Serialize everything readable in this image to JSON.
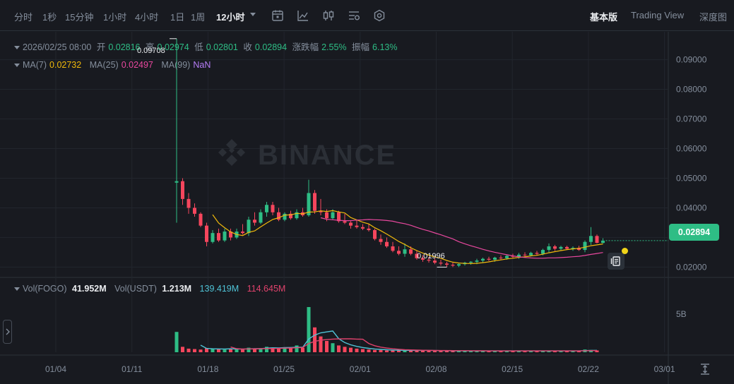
{
  "toolbar": {
    "timeframes": [
      "分时",
      "1秒",
      "15分钟",
      "1小时",
      "4小时",
      "1日",
      "1周",
      "12小时"
    ],
    "active_timeframe": "12小时",
    "icons": [
      "indicator-settings-icon",
      "line-chart-icon",
      "candle-type-icon",
      "depth-settings-icon",
      "settings-gear-icon"
    ],
    "views": [
      "基本版",
      "Trading View",
      "深度图"
    ],
    "active_view": "基本版"
  },
  "ohlc": {
    "date": "2026/02/25 08:00",
    "open_label": "开",
    "open": "0.02816",
    "high_label": "高",
    "high": "0.02974",
    "low_label": "低",
    "low": "0.02801",
    "close_label": "收",
    "close": "0.02894",
    "change_label": "涨跌幅",
    "change": "2.55%",
    "amplitude_label": "振幅",
    "amplitude": "6.13%"
  },
  "ma": {
    "ma7_label": "MA(7)",
    "ma7": "0.02732",
    "ma25_label": "MA(25)",
    "ma25": "0.02497",
    "ma99_label": "MA(99)",
    "ma99": "NaN"
  },
  "volume": {
    "vol_fogo_label": "Vol(FOGO)",
    "vol_fogo": "41.952M",
    "vol_usdt_label": "Vol(USDT)",
    "vol_usdt": "1.213M",
    "ma_a": "139.419M",
    "ma_b": "114.645M",
    "axis_tick": "5B"
  },
  "price_axis": [
    "0.09000",
    "0.08000",
    "0.07000",
    "0.06000",
    "0.05000",
    "0.04000",
    "0.03000",
    "0.02000"
  ],
  "current_price": "0.02894",
  "high_marker": "0.09708",
  "low_marker": "0.01996",
  "date_axis": [
    "01/04",
    "01/11",
    "01/18",
    "01/25",
    "02/01",
    "02/08",
    "02/15",
    "02/22",
    "03/01"
  ],
  "watermark": "BINANCE",
  "colors": {
    "up": "#2ebd85",
    "down": "#f6465d",
    "ma7": "#f0b90b",
    "ma25": "#e8489e",
    "vol_ma_a": "#4fc3d6",
    "vol_ma_b": "#e0426c",
    "background": "#181a20"
  },
  "chart_data": {
    "type": "candlestick",
    "interval": "12h",
    "series": [
      {
        "name": "price",
        "ohlc": [
          [
            0.0485,
            0.0971,
            0.035,
            0.049
          ],
          [
            0.049,
            0.05,
            0.041,
            0.043
          ],
          [
            0.043,
            0.045,
            0.038,
            0.04
          ],
          [
            0.04,
            0.0415,
            0.037,
            0.038
          ],
          [
            0.038,
            0.0385,
            0.0335,
            0.034
          ],
          [
            0.034,
            0.035,
            0.027,
            0.0285
          ],
          [
            0.0285,
            0.0325,
            0.028,
            0.0315
          ],
          [
            0.0315,
            0.033,
            0.0285,
            0.029
          ],
          [
            0.029,
            0.033,
            0.0285,
            0.032
          ],
          [
            0.032,
            0.033,
            0.029,
            0.03
          ],
          [
            0.03,
            0.033,
            0.0295,
            0.032
          ],
          [
            0.032,
            0.0345,
            0.031,
            0.0315
          ],
          [
            0.0315,
            0.037,
            0.0305,
            0.036
          ],
          [
            0.036,
            0.0385,
            0.034,
            0.035
          ],
          [
            0.035,
            0.0395,
            0.0345,
            0.0385
          ],
          [
            0.0385,
            0.042,
            0.037,
            0.041
          ],
          [
            0.041,
            0.042,
            0.0375,
            0.0385
          ],
          [
            0.0385,
            0.04,
            0.0355,
            0.036
          ],
          [
            0.036,
            0.0385,
            0.0355,
            0.038
          ],
          [
            0.038,
            0.039,
            0.036,
            0.0365
          ],
          [
            0.0365,
            0.0395,
            0.036,
            0.0385
          ],
          [
            0.0385,
            0.04,
            0.037,
            0.0375
          ],
          [
            0.0375,
            0.0495,
            0.037,
            0.045
          ],
          [
            0.045,
            0.046,
            0.038,
            0.039
          ],
          [
            0.039,
            0.043,
            0.0375,
            0.0385
          ],
          [
            0.0385,
            0.0395,
            0.0355,
            0.0365
          ],
          [
            0.0365,
            0.0395,
            0.036,
            0.0385
          ],
          [
            0.0385,
            0.039,
            0.035,
            0.0355
          ],
          [
            0.0355,
            0.038,
            0.0345,
            0.035
          ],
          [
            0.035,
            0.0355,
            0.033,
            0.034
          ],
          [
            0.034,
            0.036,
            0.033,
            0.0335
          ],
          [
            0.0335,
            0.0345,
            0.0325,
            0.033
          ],
          [
            0.033,
            0.0345,
            0.032,
            0.0325
          ],
          [
            0.0325,
            0.033,
            0.029,
            0.0295
          ],
          [
            0.0295,
            0.031,
            0.0275,
            0.0285
          ],
          [
            0.0285,
            0.03,
            0.0265,
            0.027
          ],
          [
            0.027,
            0.0285,
            0.025,
            0.0255
          ],
          [
            0.0255,
            0.027,
            0.024,
            0.0245
          ],
          [
            0.0245,
            0.028,
            0.0235,
            0.026
          ],
          [
            0.026,
            0.027,
            0.024,
            0.0245
          ],
          [
            0.0245,
            0.0255,
            0.0225,
            0.023
          ],
          [
            0.023,
            0.024,
            0.0218,
            0.0225
          ],
          [
            0.0225,
            0.0235,
            0.0215,
            0.0222
          ],
          [
            0.0222,
            0.023,
            0.021,
            0.0215
          ],
          [
            0.0215,
            0.0225,
            0.0205,
            0.0212
          ],
          [
            0.0212,
            0.0218,
            0.02,
            0.0208
          ],
          [
            0.0208,
            0.0215,
            0.02,
            0.0205
          ],
          [
            0.0205,
            0.0212,
            0.02,
            0.021
          ],
          [
            0.021,
            0.0218,
            0.0205,
            0.0215
          ],
          [
            0.0215,
            0.022,
            0.0208,
            0.0218
          ],
          [
            0.0218,
            0.0228,
            0.021,
            0.0222
          ],
          [
            0.0222,
            0.0232,
            0.0215,
            0.0228
          ],
          [
            0.0228,
            0.0235,
            0.022,
            0.0225
          ],
          [
            0.0225,
            0.0235,
            0.0218,
            0.0232
          ],
          [
            0.0232,
            0.024,
            0.0225,
            0.023
          ],
          [
            0.023,
            0.0242,
            0.0225,
            0.0238
          ],
          [
            0.0238,
            0.0245,
            0.023,
            0.0235
          ],
          [
            0.0235,
            0.0248,
            0.0228,
            0.0242
          ],
          [
            0.0242,
            0.025,
            0.0235,
            0.024
          ],
          [
            0.024,
            0.0252,
            0.0236,
            0.0248
          ],
          [
            0.0248,
            0.0255,
            0.024,
            0.0245
          ],
          [
            0.0245,
            0.0262,
            0.024,
            0.0258
          ],
          [
            0.0258,
            0.028,
            0.025,
            0.027
          ],
          [
            0.027,
            0.0275,
            0.0255,
            0.0262
          ],
          [
            0.0262,
            0.0272,
            0.0255,
            0.0268
          ],
          [
            0.0268,
            0.0272,
            0.0258,
            0.0262
          ],
          [
            0.0262,
            0.027,
            0.0255,
            0.0265
          ],
          [
            0.0265,
            0.0272,
            0.0255,
            0.0258
          ],
          [
            0.0258,
            0.029,
            0.025,
            0.0285
          ],
          [
            0.0285,
            0.0335,
            0.0275,
            0.0305
          ],
          [
            0.0305,
            0.031,
            0.028,
            0.0282
          ],
          [
            0.02816,
            0.02974,
            0.02801,
            0.02894
          ]
        ]
      },
      {
        "name": "MA(7)",
        "color": "#f0b90b"
      },
      {
        "name": "MA(25)",
        "color": "#e8489e"
      }
    ],
    "y_range": [
      0.017,
      0.098
    ],
    "x_labels": [
      "01/04",
      "01/11",
      "01/18",
      "01/25",
      "02/01",
      "02/08",
      "02/15",
      "02/22",
      "03/01"
    ],
    "volume_fogo_relative": [
      0.45,
      0.12,
      0.08,
      0.07,
      0.06,
      0.09,
      0.08,
      0.07,
      0.06,
      0.08,
      0.07,
      0.06,
      0.1,
      0.08,
      0.09,
      0.12,
      0.1,
      0.09,
      0.11,
      0.1,
      0.15,
      0.1,
      1.0,
      0.55,
      0.35,
      0.25,
      0.2,
      0.15,
      0.12,
      0.1,
      0.08,
      0.07,
      0.06,
      0.05,
      0.05,
      0.04,
      0.04,
      0.04,
      0.04,
      0.04,
      0.04,
      0.04,
      0.04,
      0.03,
      0.03,
      0.03,
      0.03,
      0.03,
      0.03,
      0.03,
      0.03,
      0.03,
      0.03,
      0.03,
      0.03,
      0.03,
      0.03,
      0.03,
      0.03,
      0.03,
      0.03,
      0.03,
      0.03,
      0.03,
      0.03,
      0.03,
      0.03,
      0.03,
      0.06,
      0.05,
      0.04
    ]
  }
}
